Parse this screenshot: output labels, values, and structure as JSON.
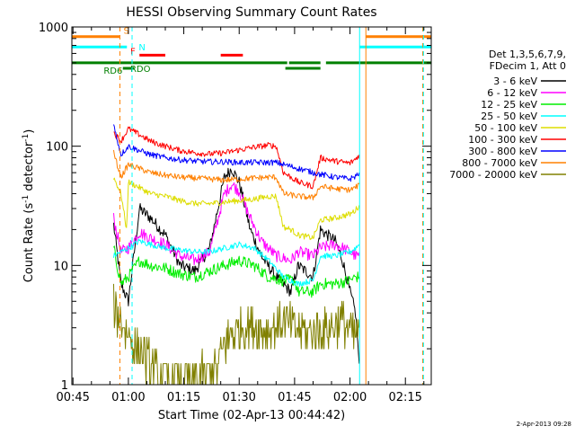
{
  "chart_data": {
    "type": "line",
    "title": "HESSI Observing Summary Count Rates",
    "xlabel": "Start Time (02-Apr-13 00:44:42)",
    "ylabel_main": "Count Rate (s",
    "ylabel_sup1": "-1",
    "ylabel_mid": " detector",
    "ylabel_sup2": "-1",
    "ylabel_end": ")",
    "y_scale": "log",
    "ylim": [
      1,
      1000
    ],
    "xlim_minutes": [
      44.7,
      142
    ],
    "x_ticks": [
      {
        "label": "00:45",
        "t": 45
      },
      {
        "label": "01:00",
        "t": 60
      },
      {
        "label": "01:15",
        "t": 75
      },
      {
        "label": "01:30",
        "t": 90
      },
      {
        "label": "01:45",
        "t": 105
      },
      {
        "label": "02:00",
        "t": 120
      },
      {
        "label": "02:15",
        "t": 135
      }
    ],
    "y_ticks": [
      {
        "label": "1",
        "v": 1
      },
      {
        "label": "10",
        "v": 10
      },
      {
        "label": "100",
        "v": 100
      },
      {
        "label": "1000",
        "v": 1000
      }
    ],
    "legend_header": [
      "Det 1,3,5,6,7,9,",
      "FDecim 1, Att 0"
    ],
    "series": [
      {
        "name": "3 - 6 keV",
        "color": "#000000",
        "x": [
          56,
          58,
          60,
          63,
          66,
          70,
          74,
          78,
          82,
          86,
          88,
          90,
          93,
          96,
          100,
          104,
          106,
          110,
          112,
          116,
          118,
          120,
          121.5,
          122.5
        ],
        "values": [
          22,
          7,
          5,
          30,
          25,
          18,
          10,
          9,
          14,
          55,
          65,
          50,
          20,
          12,
          8,
          6,
          10,
          8,
          20,
          16,
          11,
          6,
          4,
          1.5
        ]
      },
      {
        "name": "6 - 12 keV",
        "color": "#ff00ff",
        "x": [
          56,
          58,
          60,
          63,
          66,
          70,
          74,
          78,
          82,
          86,
          88,
          90,
          93,
          96,
          100,
          104,
          106,
          110,
          112,
          116,
          118,
          120,
          121.5,
          122.5
        ],
        "values": [
          25,
          13,
          14,
          19,
          17,
          15,
          12,
          11,
          13,
          40,
          48,
          42,
          25,
          16,
          12,
          11,
          13,
          12,
          14,
          15,
          14,
          13,
          12,
          12
        ]
      },
      {
        "name": "12 - 25 keV",
        "color": "#00ee00",
        "x": [
          56,
          58,
          60,
          63,
          66,
          70,
          74,
          78,
          82,
          86,
          90,
          94,
          98,
          102,
          105,
          106,
          110,
          112,
          116,
          120,
          121.5,
          122.5
        ],
        "values": [
          14,
          7,
          8,
          11,
          10,
          9.5,
          8.5,
          8,
          9,
          10,
          11,
          10,
          8,
          7.5,
          7.5,
          6,
          6,
          7,
          7,
          7.5,
          8,
          8
        ]
      },
      {
        "name": "25 - 50 keV",
        "color": "#00ffff",
        "x": [
          56,
          58,
          60,
          63,
          66,
          70,
          74,
          78,
          82,
          86,
          90,
          94,
          98,
          102,
          104,
          106,
          110,
          112,
          116,
          120,
          121.5,
          122.5
        ],
        "values": [
          12,
          13,
          14,
          16,
          15,
          14,
          13.5,
          13,
          13,
          14,
          15,
          14,
          11,
          8,
          7.5,
          7,
          7.5,
          12,
          12,
          13,
          14,
          15
        ]
      },
      {
        "name": "50 - 100 keV",
        "color": "#dddd00",
        "x": [
          56,
          58,
          59.5,
          60,
          63,
          66,
          70,
          74,
          78,
          82,
          86,
          90,
          94,
          98,
          100,
          102,
          104,
          106,
          110,
          112,
          116,
          120,
          121.5,
          122.5
        ],
        "values": [
          55,
          40,
          20,
          50,
          45,
          40,
          38,
          35,
          33,
          33,
          34,
          35,
          36,
          38,
          38,
          21,
          20,
          18,
          17,
          24,
          25,
          27,
          29,
          32
        ]
      },
      {
        "name": "100 - 300 keV",
        "color": "#ff0000",
        "x": [
          56,
          58,
          60,
          63,
          66,
          70,
          74,
          78,
          82,
          86,
          90,
          94,
          98,
          100,
          102,
          104,
          106,
          110,
          112,
          116,
          120,
          121.5,
          122.5
        ],
        "values": [
          130,
          110,
          140,
          125,
          110,
          100,
          92,
          88,
          86,
          88,
          93,
          98,
          102,
          100,
          60,
          55,
          50,
          46,
          80,
          75,
          72,
          78,
          85
        ]
      },
      {
        "name": "300 - 800 keV",
        "color": "#0000ff",
        "x": [
          56,
          58,
          60,
          63,
          66,
          70,
          74,
          78,
          82,
          86,
          90,
          94,
          98,
          100,
          112,
          116,
          120,
          121.5,
          122.5
        ],
        "values": [
          150,
          85,
          100,
          92,
          85,
          80,
          77,
          75,
          74,
          74,
          73,
          73,
          73,
          73,
          58,
          55,
          53,
          56,
          60
        ]
      },
      {
        "name": "800 - 7000 keV",
        "color": "#ff8000",
        "x": [
          56,
          58,
          60,
          63,
          66,
          70,
          74,
          78,
          82,
          86,
          90,
          94,
          98,
          100,
          102,
          106,
          110,
          112,
          116,
          120,
          121.5,
          122.5
        ],
        "values": [
          88,
          55,
          70,
          65,
          60,
          57,
          55,
          54,
          53,
          52,
          53,
          54,
          55,
          55,
          40,
          38,
          37,
          46,
          44,
          43,
          45,
          48
        ]
      },
      {
        "name": "7000 - 20000 keV",
        "color": "#808000",
        "x": [
          56,
          58,
          60,
          62,
          64,
          66,
          68,
          72,
          76,
          80,
          84,
          86,
          88,
          90,
          94,
          98,
          102,
          106,
          110,
          114,
          118,
          121,
          122.5
        ],
        "values": [
          4.5,
          3.5,
          2.5,
          2,
          1.8,
          1.5,
          1.2,
          1.1,
          1.1,
          1.2,
          1.4,
          2.2,
          2.8,
          3,
          3.2,
          2.8,
          3.5,
          2.8,
          2.8,
          3,
          3.5,
          2.5,
          3
        ]
      }
    ],
    "flags": [
      {
        "label": "S",
        "color": "#ff8000",
        "level": 830,
        "segments": [
          [
            44.7,
            57.7
          ],
          [
            124.3,
            142
          ]
        ]
      },
      {
        "label": "N",
        "color": "#00ffff",
        "level": 680,
        "segments": [
          [
            44.7,
            59.6
          ],
          [
            122.6,
            142
          ]
        ]
      },
      {
        "label": "F",
        "color": "#ff0000",
        "level": 580,
        "segments": [
          [
            63,
            70
          ],
          [
            85,
            91
          ]
        ]
      },
      {
        "label": "RD6",
        "color": "#008000",
        "level": 500,
        "segments": [
          [
            44.7,
            103
          ],
          [
            103.5,
            112
          ],
          [
            113.5,
            142
          ]
        ]
      },
      {
        "label": "RDO",
        "color": "#008000",
        "level": 450,
        "segments": [
          [
            58.5,
            61.5
          ],
          [
            102.5,
            112
          ]
        ]
      }
    ],
    "vlines": [
      {
        "t": 57.7,
        "color": "#ff8000",
        "dash": true
      },
      {
        "t": 61,
        "color": "#00ffff",
        "dash": true
      },
      {
        "t": 122.6,
        "color": "#00ffff",
        "dash": false
      },
      {
        "t": 124.3,
        "color": "#ff8000",
        "dash": false
      },
      {
        "t": 139.7,
        "color": "#ff8000",
        "dash": true
      },
      {
        "t": 139.9,
        "color": "#00ffff",
        "dash": true
      }
    ],
    "footer_stamp": "2-Apr-2013 09:28"
  }
}
